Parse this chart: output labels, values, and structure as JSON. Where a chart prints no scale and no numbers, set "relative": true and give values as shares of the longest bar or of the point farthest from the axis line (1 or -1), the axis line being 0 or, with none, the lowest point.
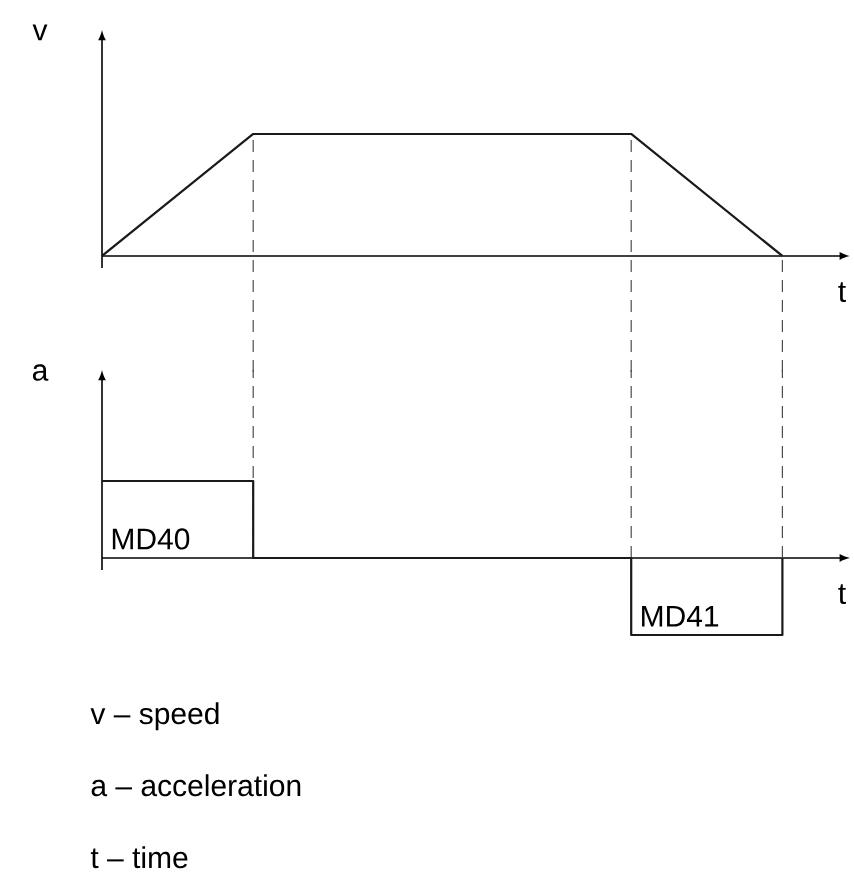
{
  "chart_data": [
    {
      "type": "line",
      "relative": true,
      "grid": "x",
      "ylabel": "v",
      "xlabel": "t",
      "categories": [
        null,
        null,
        null,
        null,
        null,
        null,
        null,
        null,
        null,
        null
      ],
      "series": [
        {
          "color": "#1a1a1a",
          "values": [
            0,
            0.5,
            1,
            1,
            1,
            1,
            1,
            1,
            0.5,
            0
          ]
        }
      ]
    },
    {
      "type": "step",
      "relative": true,
      "grid": "x",
      "ylabel": "a",
      "xlabel": "t",
      "categories": [
        null,
        null,
        null,
        null,
        null,
        null,
        null,
        null,
        null,
        null
      ],
      "series": [
        {
          "color": "#1a1a1a",
          "values": [
            1,
            1,
            0,
            0,
            0,
            0,
            0,
            -1,
            -1,
            0
          ]
        }
      ],
      "annotations": [
        "MD40",
        "MD41",
        "v – speed",
        "a – acceleration",
        "t – time"
      ]
    }
  ]
}
